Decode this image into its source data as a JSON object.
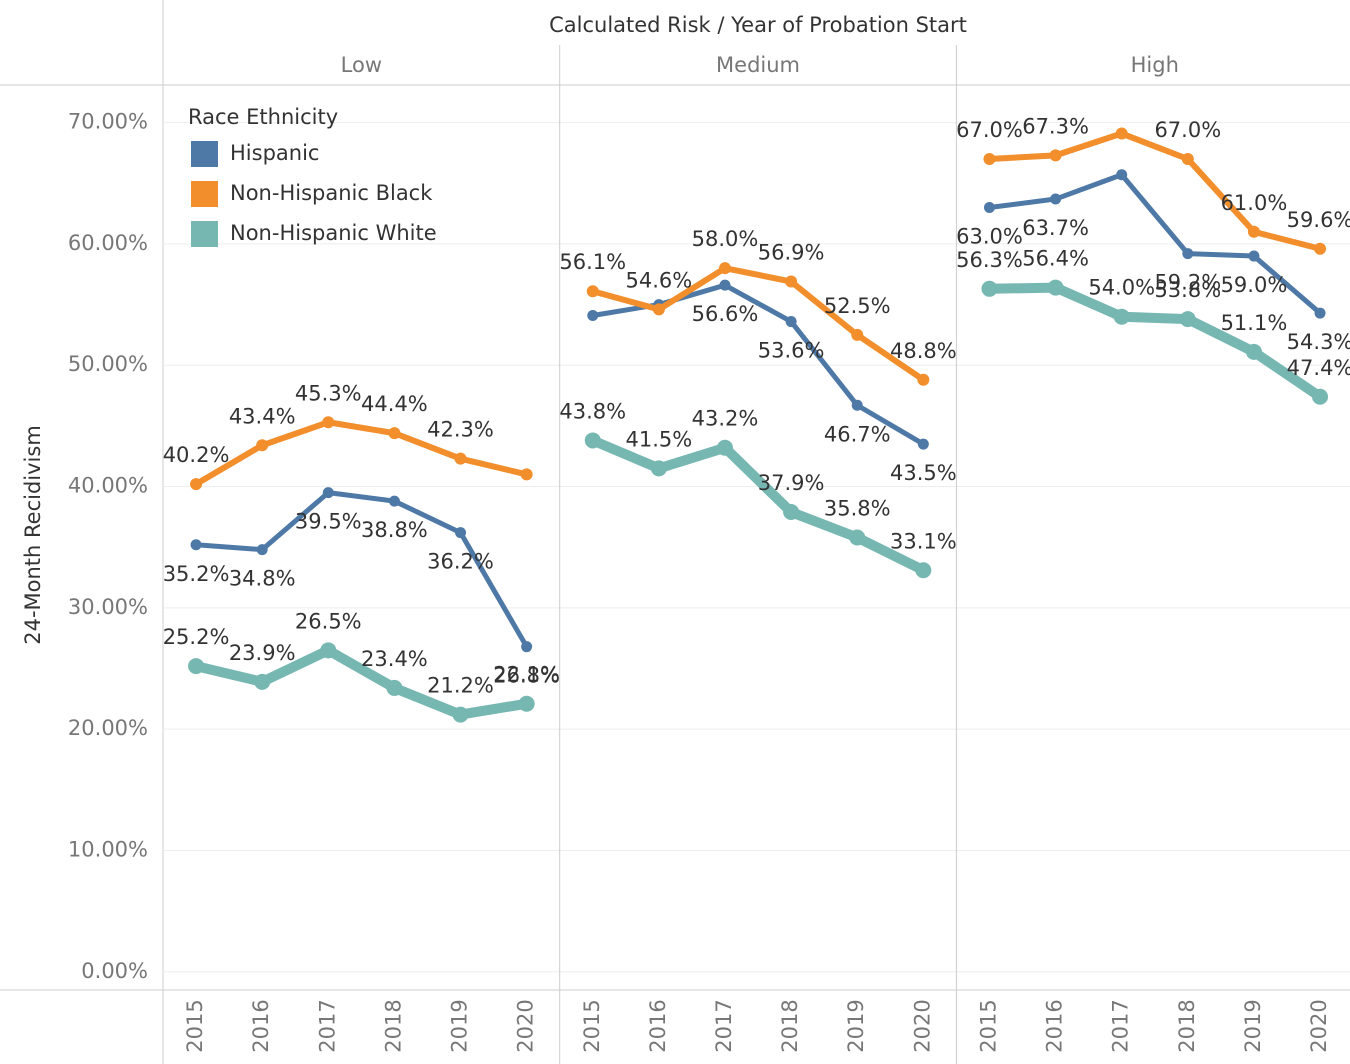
{
  "chart_data": {
    "type": "line",
    "title": "Calculated Risk  /  Year of Probation Start",
    "y_label": "24-Month Recidivism",
    "legend_title": "Race Ethnicity",
    "legend_position": "upper-left",
    "categories": [
      "2015",
      "2016",
      "2017",
      "2018",
      "2019",
      "2020"
    ],
    "ylim": [
      -1.5,
      73.1
    ],
    "yticks": [
      {
        "value": 0,
        "label": "0.00%"
      },
      {
        "value": 10,
        "label": "10.00%"
      },
      {
        "value": 20,
        "label": "20.00%"
      },
      {
        "value": 30,
        "label": "30.00%"
      },
      {
        "value": 40,
        "label": "40.00%"
      },
      {
        "value": 50,
        "label": "50.00%"
      },
      {
        "value": 60,
        "label": "60.00%"
      },
      {
        "value": 70,
        "label": "70.00%"
      }
    ],
    "grid": true,
    "series": [
      {
        "name": "Hispanic",
        "color": "#4e79a7"
      },
      {
        "name": "Non-Hispanic Black",
        "color": "#f28e2b"
      },
      {
        "name": "Non-Hispanic White",
        "color": "#76b7b2"
      }
    ],
    "panels": [
      {
        "name": "Low",
        "values": [
          [
            35.2,
            34.8,
            39.5,
            38.8,
            36.2,
            26.8
          ],
          [
            40.2,
            43.4,
            45.3,
            44.4,
            42.3,
            41.0
          ],
          [
            25.2,
            23.9,
            26.5,
            23.4,
            21.2,
            22.1
          ]
        ],
        "value_labels": [
          [
            "35.2%",
            "34.8%",
            "39.5%",
            "38.8%",
            "36.2%",
            "26.8%"
          ],
          [
            "40.2%",
            "43.4%",
            "45.3%",
            "44.4%",
            "42.3%",
            null
          ],
          [
            "25.2%",
            "23.9%",
            "26.5%",
            "23.4%",
            "21.2%",
            "22.1%"
          ]
        ]
      },
      {
        "name": "Medium",
        "values": [
          [
            54.1,
            55.0,
            56.6,
            53.6,
            46.7,
            43.5
          ],
          [
            56.1,
            54.6,
            58.0,
            56.9,
            52.5,
            48.8
          ],
          [
            43.8,
            41.5,
            43.2,
            37.9,
            35.8,
            33.1
          ]
        ],
        "value_labels": [
          [
            null,
            null,
            "56.6%",
            "53.6%",
            "46.7%",
            "43.5%"
          ],
          [
            "56.1%",
            "54.6%",
            "58.0%",
            "56.9%",
            "52.5%",
            "48.8%"
          ],
          [
            "43.8%",
            "41.5%",
            "43.2%",
            "37.9%",
            "35.8%",
            "33.1%"
          ]
        ]
      },
      {
        "name": "High",
        "values": [
          [
            63.0,
            63.7,
            65.7,
            59.2,
            59.0,
            54.3
          ],
          [
            67.0,
            67.3,
            69.1,
            67.0,
            61.0,
            59.6
          ],
          [
            56.3,
            56.4,
            54.0,
            53.8,
            51.1,
            47.4
          ]
        ],
        "value_labels": [
          [
            "63.0%",
            "63.7%",
            null,
            "59.2%",
            "59.0%",
            "54.3%"
          ],
          [
            "67.0%",
            "67.3%",
            null,
            "67.0%",
            "61.0%",
            "59.6%"
          ],
          [
            "56.3%",
            "56.4%",
            "54.0%",
            "53.8%",
            "51.1%",
            "47.4%"
          ]
        ]
      }
    ]
  }
}
